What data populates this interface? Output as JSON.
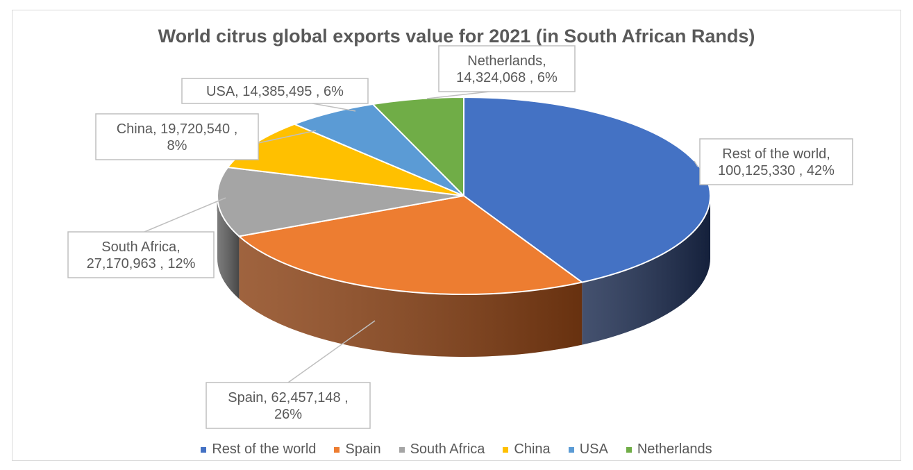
{
  "chart_data": {
    "type": "pie",
    "style": "3d-pie",
    "title": "World citrus global exports value for 2021 (in South African Rands)",
    "legend_position": "bottom",
    "slices": [
      {
        "name": "Rest of the world",
        "value": 100125330,
        "percent": 42,
        "color": "#4472c4",
        "side_color": "#1b2b4f",
        "label_lines": [
          "Rest of the world,",
          "100,125,330 , 42%"
        ]
      },
      {
        "name": "Spain",
        "value": 62457148,
        "percent": 26,
        "color": "#ed7d31",
        "side_color": "#8a4114",
        "label_lines": [
          "Spain,  62,457,148 ,",
          "26%"
        ]
      },
      {
        "name": "South Africa",
        "value": 27170963,
        "percent": 12,
        "color": "#a5a5a5",
        "side_color": "#5e5e5e",
        "label_lines": [
          "South Africa,",
          "27,170,963 , 12%"
        ]
      },
      {
        "name": "China",
        "value": 19720540,
        "percent": 8,
        "color": "#ffc000",
        "side_color": "#8f6c00",
        "label_lines": [
          "China,  19,720,540 ,",
          "8%"
        ]
      },
      {
        "name": "USA",
        "value": 14385495,
        "percent": 6,
        "color": "#5b9bd5",
        "side_color": "#2e5577",
        "label_lines": [
          "USA,  14,385,495 , 6%"
        ]
      },
      {
        "name": "Netherlands",
        "value": 14324068,
        "percent": 6,
        "color": "#70ad47",
        "side_color": "#3c5f25",
        "label_lines": [
          "Netherlands,",
          "14,324,068 , 6%"
        ]
      }
    ]
  }
}
